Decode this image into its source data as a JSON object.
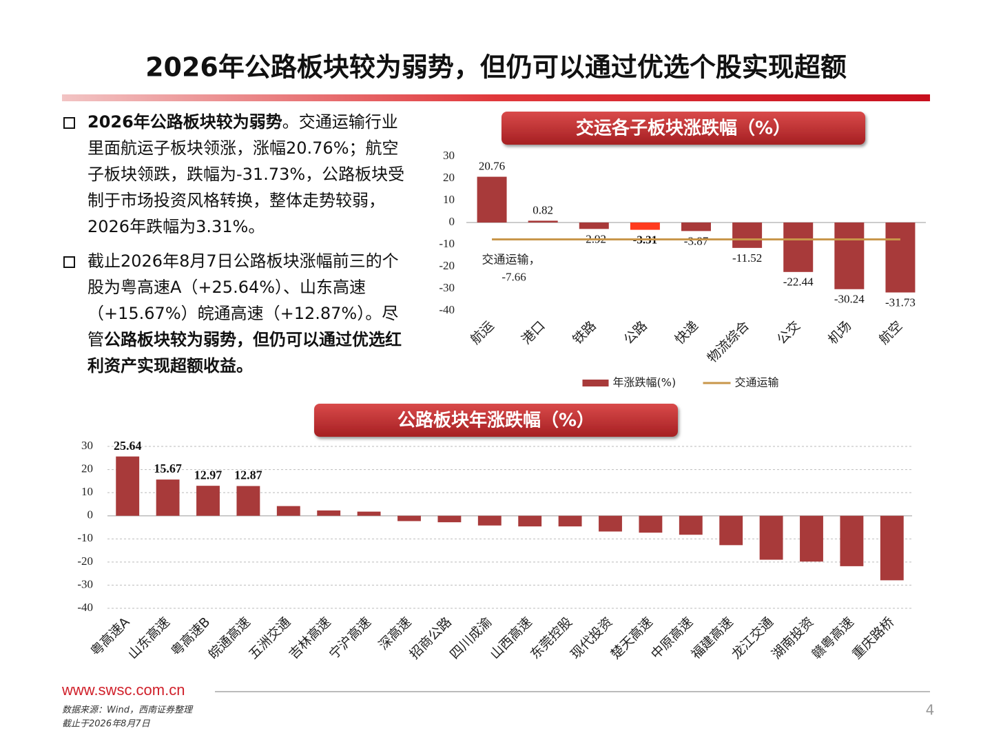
{
  "header": {
    "title": "2026年公路板块较为弱势，但仍可以通过优选个股实现超额"
  },
  "bullets": [
    {
      "segments": [
        {
          "text": "2026年公路板块较为弱势",
          "bold": true
        },
        {
          "text": "。交通运输行业里面航运子板块领涨，涨幅20.76%；航空子板块领跌，跌幅为-31.73%，公路板块受制于市场投资风格转换，整体走势较弱，2026年跌幅为3.31%。",
          "bold": false
        }
      ]
    },
    {
      "segments": [
        {
          "text": "截止2026年8月7日公路板块涨幅前三的个股为粤高速A（+25.64%）、山东高速（+15.67%）皖通高速（+12.87%）。尽管",
          "bold": false
        },
        {
          "text": "公路板块较为弱势，但仍可以通过优选红利资产实现超额收益。",
          "bold": true
        }
      ]
    }
  ],
  "chart_data": [
    {
      "type": "bar",
      "title": "交运各子板块涨跌幅（%）",
      "categories": [
        "航运",
        "港口",
        "铁路",
        "公路",
        "快递",
        "物流综合",
        "公交",
        "机场",
        "航空"
      ],
      "series": [
        {
          "name": "年涨跌幅(%)",
          "color": "#a83a3a",
          "colors": [
            "#a83a3a",
            "#a83a3a",
            "#a83a3a",
            "#ff3b1f",
            "#a83a3a",
            "#a83a3a",
            "#a83a3a",
            "#a83a3a",
            "#a83a3a"
          ],
          "values": [
            20.76,
            0.82,
            -2.92,
            -3.31,
            -3.87,
            -11.52,
            -22.44,
            -30.24,
            -31.73
          ]
        }
      ],
      "reference": {
        "name": "交通运输",
        "label": "交通运输，",
        "value": -7.66,
        "color": "#c8964a"
      },
      "ylim": [
        -40,
        30
      ],
      "yticks": [
        -40,
        -30,
        -20,
        -10,
        0,
        10,
        20,
        30
      ],
      "grid": false,
      "legend": "bottom"
    },
    {
      "type": "bar",
      "title": "公路板块年涨跌幅（%）",
      "categories": [
        "粤高速A",
        "山东高速",
        "粤高速B",
        "皖通高速",
        "五洲交通",
        "吉林高速",
        "宁沪高速",
        "深高速",
        "招商公路",
        "四川成渝",
        "山西高速",
        "东莞控股",
        "现代投资",
        "楚天高速",
        "中原高速",
        "福建高速",
        "龙江交通",
        "湖南投资",
        "赣粤高速",
        "重庆路桥"
      ],
      "values": [
        25.64,
        15.67,
        12.97,
        12.87,
        4.2,
        2.3,
        1.8,
        -2.3,
        -2.8,
        -4.2,
        -4.6,
        -4.6,
        -6.8,
        -7.3,
        -8.2,
        -12.7,
        -19,
        -19.8,
        -21.8,
        -27.9
      ],
      "value_labels": [
        "25.64",
        "15.67",
        "12.97",
        "12.87",
        null,
        null,
        null,
        null,
        null,
        null,
        null,
        null,
        null,
        null,
        null,
        null,
        null,
        null,
        null,
        null
      ],
      "color": "#a83a3a",
      "ylim": [
        -40,
        30
      ],
      "yticks": [
        -40,
        -30,
        -20,
        -10,
        0,
        10,
        20,
        30
      ],
      "grid": true
    }
  ],
  "footer": {
    "site": "www.swsc.com.cn",
    "source": "数据来源：Wind，西南证券整理",
    "date": "截止于2026年8月7日",
    "page": "4"
  }
}
